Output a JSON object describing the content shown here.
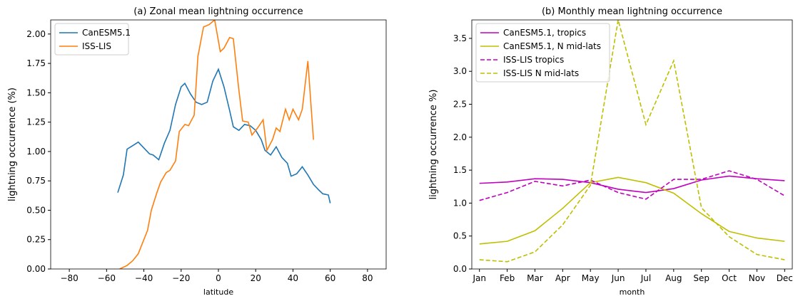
{
  "chart_data": [
    {
      "type": "line",
      "title": "(a) Zonal mean lightning occurrence",
      "x_label": "latitude",
      "y_label": "lightning occurrence (%)",
      "xlim": [
        -90,
        90
      ],
      "xticks": [
        {
          "value": -80,
          "label": "−80"
        },
        {
          "value": -60,
          "label": "−60"
        },
        {
          "value": -40,
          "label": "−40"
        },
        {
          "value": -20,
          "label": "−20"
        },
        0,
        20,
        40,
        60,
        80
      ],
      "ylim": [
        0,
        2.12
      ],
      "yticks": [
        {
          "value": 0,
          "label": "0.00"
        },
        {
          "value": 0.25,
          "label": "0.25"
        },
        {
          "value": 0.5,
          "label": "0.50"
        },
        {
          "value": 0.75,
          "label": "0.75"
        },
        {
          "value": 1,
          "label": "1.00"
        },
        {
          "value": 1.25,
          "label": "1.25"
        },
        {
          "value": 1.5,
          "label": "1.50"
        },
        {
          "value": 1.75,
          "label": "1.75"
        },
        {
          "value": 2,
          "label": "2.00"
        }
      ],
      "legend": "upper left",
      "grid": false,
      "series": [
        {
          "name": "CanESM5.1",
          "color": "#1f77b4",
          "linestyle": "solid",
          "x": [
            -54,
            -51,
            -49,
            -46,
            -43,
            -40,
            -37,
            -35,
            -32,
            -29,
            -26,
            -23,
            -20,
            -18,
            -15,
            -12,
            -9,
            -6,
            -3,
            0,
            3,
            6,
            8,
            11,
            14,
            17,
            20,
            23,
            25,
            28,
            31,
            34,
            37,
            39,
            42,
            45,
            48,
            51,
            54,
            56,
            59,
            60
          ],
          "values": [
            0.65,
            0.8,
            1.02,
            1.05,
            1.08,
            1.03,
            0.98,
            0.97,
            0.93,
            1.07,
            1.18,
            1.4,
            1.55,
            1.58,
            1.49,
            1.42,
            1.4,
            1.42,
            1.6,
            1.7,
            1.55,
            1.35,
            1.21,
            1.18,
            1.23,
            1.22,
            1.18,
            1.1,
            1.01,
            0.97,
            1.04,
            0.95,
            0.9,
            0.79,
            0.81,
            0.87,
            0.8,
            0.72,
            0.67,
            0.64,
            0.63,
            0.56
          ]
        },
        {
          "name": "ISS-LIS",
          "color": "#ff7f0e",
          "linestyle": "solid",
          "x": [
            -53,
            -49,
            -46,
            -43,
            -41,
            -38,
            -36,
            -33,
            -31,
            -28,
            -26,
            -23,
            -21,
            -18,
            -16,
            -13,
            -11,
            -8,
            -5,
            -2,
            1,
            3,
            6,
            8,
            11,
            13,
            16,
            18,
            21,
            24,
            26,
            29,
            31,
            33,
            36,
            38,
            40,
            43,
            45,
            48,
            51
          ],
          "values": [
            0.0,
            0.03,
            0.07,
            0.13,
            0.21,
            0.33,
            0.5,
            0.65,
            0.74,
            0.82,
            0.84,
            0.92,
            1.17,
            1.23,
            1.22,
            1.31,
            1.81,
            2.06,
            2.08,
            2.12,
            1.85,
            1.88,
            1.97,
            1.96,
            1.52,
            1.26,
            1.25,
            1.14,
            1.2,
            1.27,
            1.01,
            1.1,
            1.2,
            1.17,
            1.36,
            1.27,
            1.36,
            1.27,
            1.36,
            1.77,
            1.1
          ]
        }
      ]
    },
    {
      "type": "line",
      "title": "(b) Monthly mean lightning occurrence",
      "x_label": "month",
      "y_label": "lightning occurrence %)",
      "categories": [
        "Jan",
        "Feb",
        "Mar",
        "Apr",
        "May",
        "Jun",
        "Jul",
        "Aug",
        "Sep",
        "Oct",
        "Nov",
        "Dec"
      ],
      "ylim": [
        0,
        3.78
      ],
      "yticks": [
        {
          "value": 0,
          "label": "0.0"
        },
        {
          "value": 0.5,
          "label": "0.5"
        },
        {
          "value": 1,
          "label": "1.0"
        },
        {
          "value": 1.5,
          "label": "1.5"
        },
        {
          "value": 2,
          "label": "2.0"
        },
        {
          "value": 2.5,
          "label": "2.5"
        },
        {
          "value": 3,
          "label": "3.0"
        },
        {
          "value": 3.5,
          "label": "3.5"
        }
      ],
      "legend": "upper left",
      "grid": false,
      "series": [
        {
          "name": "CanESM5.1, tropics",
          "color": "#bf00bf",
          "linestyle": "solid",
          "values": [
            1.3,
            1.32,
            1.37,
            1.36,
            1.31,
            1.21,
            1.16,
            1.22,
            1.35,
            1.41,
            1.37,
            1.34
          ]
        },
        {
          "name": "CanESM5.1, N mid-lats",
          "color": "#bfbf00",
          "linestyle": "solid",
          "values": [
            0.38,
            0.42,
            0.58,
            0.92,
            1.31,
            1.39,
            1.31,
            1.15,
            0.84,
            0.57,
            0.47,
            0.42
          ]
        },
        {
          "name": "ISS-LIS tropics",
          "color": "#bf00bf",
          "linestyle": "dashed",
          "values": [
            1.04,
            1.16,
            1.33,
            1.26,
            1.35,
            1.16,
            1.06,
            1.36,
            1.36,
            1.49,
            1.36,
            1.11
          ]
        },
        {
          "name": "ISS-LIS N mid-lats",
          "color": "#bfbf00",
          "linestyle": "dashed",
          "values": [
            0.14,
            0.11,
            0.26,
            0.67,
            1.27,
            3.78,
            2.19,
            3.16,
            0.93,
            0.49,
            0.22,
            0.14
          ]
        }
      ]
    }
  ]
}
